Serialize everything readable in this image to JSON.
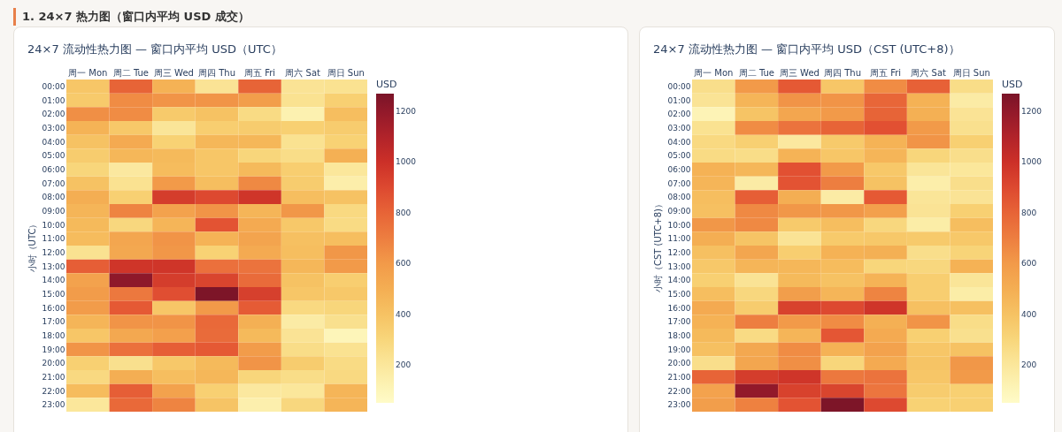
{
  "chart_data": [
    {
      "type": "other",
      "title": "1. 24×7 热力图（窗口内平均 USD 成交）"
    },
    {
      "type": "heatmap",
      "title": "24×7 流动性热力图 — 窗口内平均 USD（UTC）",
      "ylabel": "小时（UTC）",
      "clabel": "USD",
      "categories": [
        "周一 Mon",
        "周二 Tue",
        "周三 Wed",
        "周四 Thu",
        "周五 Fri",
        "周六 Sat",
        "周日 Sun"
      ],
      "y_categories": [
        "00:00",
        "01:00",
        "02:00",
        "03:00",
        "04:00",
        "05:00",
        "06:00",
        "07:00",
        "08:00",
        "09:00",
        "10:00",
        "11:00",
        "12:00",
        "13:00",
        "14:00",
        "15:00",
        "16:00",
        "17:00",
        "18:00",
        "19:00",
        "20:00",
        "21:00",
        "22:00",
        "23:00"
      ],
      "cells": [
        [
          380,
          800,
          480,
          220,
          800,
          220,
          230
        ],
        [
          360,
          650,
          620,
          620,
          580,
          230,
          330
        ],
        [
          640,
          650,
          360,
          400,
          270,
          130,
          420
        ],
        [
          470,
          370,
          210,
          340,
          350,
          330,
          350
        ],
        [
          400,
          520,
          320,
          450,
          450,
          230,
          320
        ],
        [
          350,
          450,
          440,
          380,
          300,
          260,
          490
        ],
        [
          300,
          190,
          430,
          380,
          440,
          340,
          200
        ],
        [
          400,
          230,
          600,
          420,
          660,
          350,
          150
        ],
        [
          500,
          330,
          950,
          900,
          980,
          420,
          400
        ],
        [
          460,
          680,
          560,
          620,
          460,
          610,
          280
        ],
        [
          440,
          290,
          460,
          860,
          520,
          370,
          270
        ],
        [
          430,
          540,
          620,
          470,
          550,
          410,
          420
        ],
        [
          230,
          530,
          610,
          320,
          520,
          420,
          610
        ],
        [
          820,
          980,
          980,
          750,
          740,
          450,
          600
        ],
        [
          560,
          1210,
          950,
          920,
          770,
          400,
          340
        ],
        [
          590,
          720,
          880,
          1260,
          940,
          380,
          370
        ],
        [
          590,
          840,
          380,
          600,
          830,
          280,
          300
        ],
        [
          460,
          620,
          620,
          780,
          490,
          170,
          240
        ],
        [
          380,
          530,
          570,
          770,
          440,
          220,
          100
        ],
        [
          620,
          750,
          820,
          840,
          590,
          260,
          230
        ],
        [
          330,
          240,
          370,
          440,
          620,
          350,
          270
        ],
        [
          280,
          500,
          420,
          450,
          300,
          260,
          280
        ],
        [
          430,
          820,
          560,
          330,
          190,
          200,
          460
        ],
        [
          200,
          780,
          680,
          390,
          140,
          290,
          460
        ]
      ],
      "clim": [
        50,
        1270
      ],
      "cticks": [
        200,
        400,
        600,
        800,
        1000,
        1200
      ]
    },
    {
      "type": "heatmap",
      "title": "24×7 流动性热力图 — 窗口内平均 USD（CST (UTC+8)）",
      "ylabel": "小时（CST (UTC+8)）",
      "clabel": "USD",
      "categories": [
        "周一 Mon",
        "周二 Tue",
        "周三 Wed",
        "周四 Thu",
        "周五 Fri",
        "周六 Sat",
        "周日 Sun"
      ],
      "y_categories": [
        "00:00",
        "01:00",
        "02:00",
        "03:00",
        "04:00",
        "05:00",
        "06:00",
        "07:00",
        "08:00",
        "09:00",
        "10:00",
        "11:00",
        "12:00",
        "13:00",
        "14:00",
        "15:00",
        "16:00",
        "17:00",
        "18:00",
        "19:00",
        "20:00",
        "21:00",
        "22:00",
        "23:00"
      ],
      "cells": [
        [
          250,
          600,
          840,
          380,
          650,
          810,
          260
        ],
        [
          220,
          460,
          620,
          620,
          790,
          480,
          170
        ],
        [
          110,
          390,
          540,
          600,
          800,
          490,
          220
        ],
        [
          230,
          650,
          740,
          800,
          870,
          600,
          240
        ],
        [
          280,
          330,
          190,
          360,
          470,
          620,
          330
        ],
        [
          270,
          260,
          470,
          380,
          460,
          300,
          250
        ],
        [
          480,
          450,
          870,
          600,
          370,
          210,
          200
        ],
        [
          460,
          170,
          860,
          700,
          400,
          150,
          250
        ],
        [
          420,
          820,
          500,
          170,
          840,
          210,
          220
        ],
        [
          410,
          660,
          610,
          610,
          570,
          220,
          330
        ],
        [
          610,
          660,
          360,
          420,
          290,
          160,
          420
        ],
        [
          500,
          390,
          220,
          360,
          370,
          360,
          370
        ],
        [
          410,
          540,
          340,
          480,
          490,
          250,
          310
        ],
        [
          370,
          460,
          450,
          430,
          300,
          290,
          480
        ],
        [
          330,
          220,
          440,
          400,
          470,
          340,
          210
        ],
        [
          420,
          290,
          580,
          460,
          680,
          340,
          160
        ],
        [
          520,
          350,
          930,
          900,
          980,
          410,
          410
        ],
        [
          480,
          700,
          600,
          650,
          490,
          620,
          260
        ],
        [
          440,
          270,
          460,
          850,
          520,
          330,
          240
        ],
        [
          410,
          530,
          650,
          480,
          560,
          380,
          400
        ],
        [
          250,
          540,
          640,
          300,
          520,
          390,
          610
        ],
        [
          800,
          950,
          980,
          720,
          740,
          380,
          600
        ],
        [
          560,
          1200,
          930,
          920,
          730,
          350,
          330
        ],
        [
          580,
          690,
          860,
          1260,
          900,
          320,
          330
        ]
      ],
      "clim": [
        50,
        1270
      ],
      "cticks": [
        200,
        400,
        600,
        800,
        1000,
        1200
      ]
    }
  ]
}
